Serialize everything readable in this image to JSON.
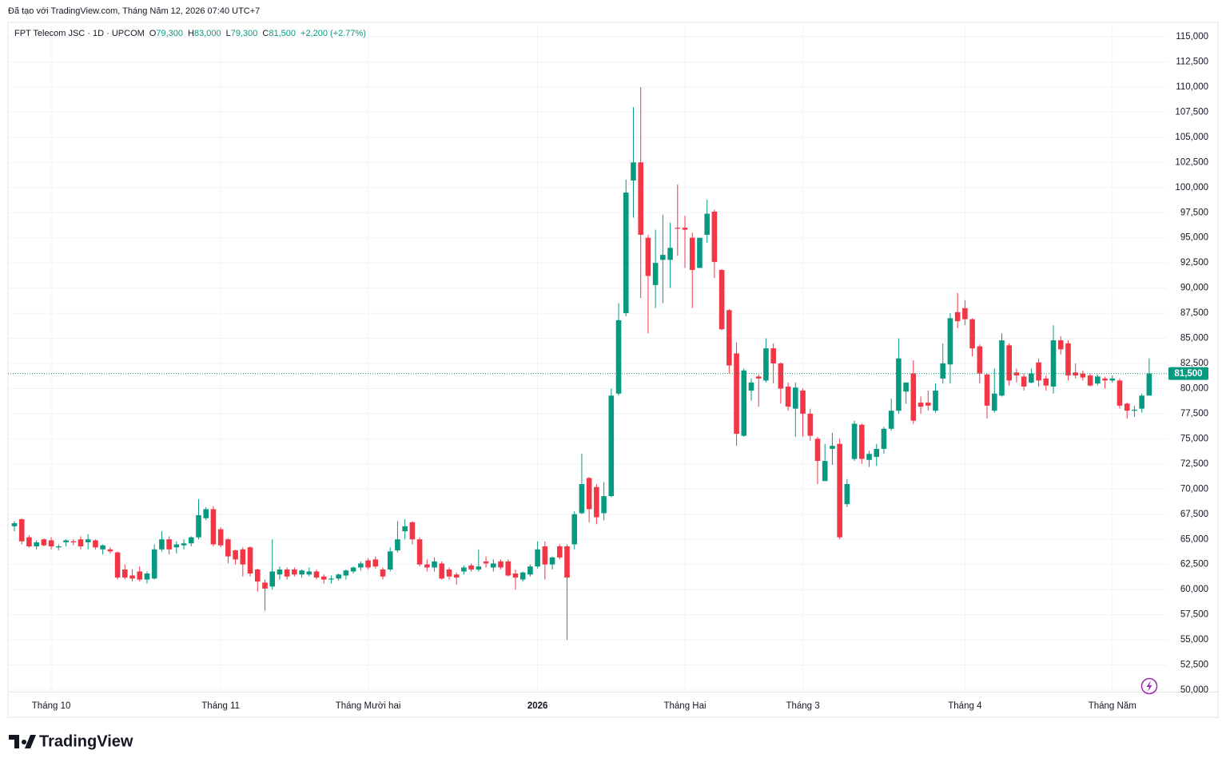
{
  "credit": "Đã tạo với TradingView.com, Tháng Năm 12, 2026 07:40 UTC+7",
  "logo": "TradingView",
  "chart_data": {
    "type": "candlestick",
    "title": "FPT Telecom JSC · 1D · UPCOM",
    "ohlc_legend": [
      {
        "key": "O",
        "value": "79,300"
      },
      {
        "key": "H",
        "value": "83,000"
      },
      {
        "key": "L",
        "value": "79,300"
      },
      {
        "key": "C",
        "value": "81,500"
      }
    ],
    "change": "+2,200 (+2.77%)",
    "up_color": "#089981",
    "down_color": "#f23645",
    "grid": true,
    "last_price": {
      "value": 81500,
      "label": "81,500"
    },
    "ylim": [
      49800,
      116400
    ],
    "yticks": [
      {
        "value": 50000,
        "label": "50,000"
      },
      {
        "value": 52500,
        "label": "52,500"
      },
      {
        "value": 55000,
        "label": "55,000"
      },
      {
        "value": 57500,
        "label": "57,500"
      },
      {
        "value": 60000,
        "label": "60,000"
      },
      {
        "value": 62500,
        "label": "62,500"
      },
      {
        "value": 65000,
        "label": "65,000"
      },
      {
        "value": 67500,
        "label": "67,500"
      },
      {
        "value": 70000,
        "label": "70,000"
      },
      {
        "value": 72500,
        "label": "72,500"
      },
      {
        "value": 75000,
        "label": "75,000"
      },
      {
        "value": 77500,
        "label": "77,500"
      },
      {
        "value": 80000,
        "label": "80,000"
      },
      {
        "value": 82500,
        "label": "82,500"
      },
      {
        "value": 85000,
        "label": "85,000"
      },
      {
        "value": 87500,
        "label": "87,500"
      },
      {
        "value": 90000,
        "label": "90,000"
      },
      {
        "value": 92500,
        "label": "92,500"
      },
      {
        "value": 95000,
        "label": "95,000"
      },
      {
        "value": 97500,
        "label": "97,500"
      },
      {
        "value": 100000,
        "label": "100,000"
      },
      {
        "value": 102500,
        "label": "102,500"
      },
      {
        "value": 105000,
        "label": "105,000"
      },
      {
        "value": 107500,
        "label": "107,500"
      },
      {
        "value": 110000,
        "label": "110,000"
      },
      {
        "value": 112500,
        "label": "112,500"
      },
      {
        "value": 115000,
        "label": "115,000"
      }
    ],
    "categories": [
      null,
      null,
      null,
      null,
      null,
      "Tháng 10",
      null,
      null,
      null,
      null,
      null,
      null,
      null,
      null,
      null,
      null,
      null,
      null,
      null,
      null,
      null,
      null,
      null,
      null,
      null,
      null,
      null,
      null,
      "Tháng 11",
      null,
      null,
      null,
      null,
      null,
      null,
      null,
      null,
      null,
      null,
      null,
      null,
      null,
      null,
      null,
      null,
      null,
      null,
      null,
      "Tháng Mười hai",
      null,
      null,
      null,
      null,
      null,
      null,
      null,
      null,
      null,
      null,
      null,
      null,
      null,
      null,
      null,
      null,
      null,
      null,
      null,
      null,
      null,
      null,
      "2026",
      null,
      null,
      null,
      null,
      null,
      null,
      null,
      null,
      null,
      null,
      null,
      null,
      null,
      null,
      null,
      null,
      null,
      null,
      null,
      "Tháng Hai",
      null,
      null,
      null,
      null,
      null,
      null,
      null,
      null,
      null,
      null,
      null,
      null,
      null,
      null,
      null,
      "Tháng 3",
      null,
      null,
      null,
      null,
      null,
      null,
      null,
      null,
      null,
      null,
      null,
      null,
      null,
      null,
      null,
      null,
      null,
      null,
      null,
      null,
      null,
      "Tháng 4",
      null,
      null,
      null,
      null,
      null,
      null,
      null,
      null,
      null,
      null,
      null,
      null,
      null,
      null,
      null,
      null,
      null,
      null,
      null,
      "Tháng Năm",
      null,
      null,
      null,
      null,
      null
    ],
    "candles": [
      [
        66300,
        66800,
        65800,
        66600
      ],
      [
        67000,
        67100,
        64500,
        64800
      ],
      [
        65200,
        65400,
        64200,
        64300
      ],
      [
        64300,
        64900,
        64000,
        64700
      ],
      [
        65000,
        65100,
        64300,
        64400
      ],
      [
        64900,
        65200,
        64000,
        64300
      ],
      [
        64200,
        64500,
        63900,
        64300
      ],
      [
        64700,
        65000,
        64300,
        64900
      ],
      [
        64800,
        65000,
        64400,
        64700
      ],
      [
        65000,
        65300,
        64000,
        64300
      ],
      [
        64700,
        65500,
        64000,
        65000
      ],
      [
        64900,
        65000,
        64000,
        64200
      ],
      [
        64000,
        64500,
        63500,
        64400
      ],
      [
        64000,
        64200,
        63600,
        63800
      ],
      [
        63700,
        63800,
        61000,
        61200
      ],
      [
        62000,
        62500,
        61000,
        61200
      ],
      [
        61400,
        62000,
        60800,
        61100
      ],
      [
        61800,
        62300,
        60800,
        61000
      ],
      [
        61000,
        61800,
        60600,
        61600
      ],
      [
        61100,
        64500,
        61000,
        64000
      ],
      [
        64000,
        65800,
        63800,
        65000
      ],
      [
        65000,
        65300,
        63500,
        64000
      ],
      [
        64200,
        64800,
        63600,
        64500
      ],
      [
        64400,
        65000,
        64000,
        64600
      ],
      [
        64600,
        65300,
        64300,
        65200
      ],
      [
        65200,
        69000,
        65000,
        67400
      ],
      [
        67100,
        68200,
        66900,
        68000
      ],
      [
        68000,
        68300,
        64300,
        64500
      ],
      [
        66000,
        66200,
        64200,
        64400
      ],
      [
        65000,
        65100,
        62600,
        63300
      ],
      [
        63900,
        64000,
        62500,
        63000
      ],
      [
        64000,
        64200,
        61300,
        62500
      ],
      [
        64200,
        64300,
        61300,
        61600
      ],
      [
        62000,
        62100,
        59800,
        60800
      ],
      [
        60700,
        61000,
        57900,
        60100
      ],
      [
        60300,
        65000,
        60000,
        61800
      ],
      [
        61500,
        62300,
        61000,
        62000
      ],
      [
        62000,
        62200,
        61000,
        61300
      ],
      [
        62000,
        62200,
        61300,
        61500
      ],
      [
        61500,
        62000,
        61200,
        61900
      ],
      [
        61500,
        62200,
        61300,
        61800
      ],
      [
        61800,
        62000,
        61000,
        61200
      ],
      [
        61300,
        61500,
        60600,
        61000
      ],
      [
        61000,
        61400,
        60600,
        61100
      ],
      [
        61100,
        61600,
        60900,
        61500
      ],
      [
        61400,
        62000,
        61000,
        61900
      ],
      [
        61800,
        62300,
        61600,
        62200
      ],
      [
        62200,
        62800,
        61900,
        62600
      ],
      [
        62900,
        63100,
        62000,
        62200
      ],
      [
        63000,
        63300,
        62100,
        62300
      ],
      [
        62000,
        62200,
        61000,
        61300
      ],
      [
        62000,
        64200,
        61800,
        63800
      ],
      [
        63900,
        66800,
        63700,
        65000
      ],
      [
        65800,
        67000,
        65000,
        66300
      ],
      [
        66700,
        66800,
        64500,
        65000
      ],
      [
        65000,
        65200,
        62300,
        62500
      ],
      [
        62500,
        63000,
        61800,
        62200
      ],
      [
        62200,
        63200,
        61800,
        62800
      ],
      [
        62600,
        62800,
        61000,
        61100
      ],
      [
        62000,
        62200,
        61000,
        61300
      ],
      [
        61500,
        61700,
        60500,
        61200
      ],
      [
        61800,
        62400,
        61500,
        62200
      ],
      [
        62400,
        62600,
        61800,
        62000
      ],
      [
        62000,
        64000,
        61800,
        62300
      ],
      [
        62800,
        63300,
        62200,
        62600
      ],
      [
        62200,
        63000,
        61800,
        62600
      ],
      [
        62800,
        63000,
        62000,
        62200
      ],
      [
        62800,
        63000,
        61300,
        61400
      ],
      [
        61600,
        62000,
        60000,
        61200
      ],
      [
        61000,
        61800,
        60800,
        61700
      ],
      [
        61500,
        62500,
        61300,
        62300
      ],
      [
        62300,
        64800,
        62100,
        64000
      ],
      [
        64300,
        64800,
        61000,
        62500
      ],
      [
        62500,
        63300,
        62000,
        63200
      ],
      [
        64300,
        64500,
        63000,
        63200
      ],
      [
        64300,
        64500,
        55000,
        61200
      ],
      [
        64500,
        67800,
        64000,
        67500
      ],
      [
        67600,
        73500,
        67500,
        70500
      ],
      [
        71100,
        71200,
        66700,
        68000
      ],
      [
        70200,
        70500,
        66500,
        67200
      ],
      [
        67600,
        70700,
        66900,
        69300
      ],
      [
        69300,
        80000,
        69200,
        79300
      ],
      [
        79500,
        88500,
        79300,
        86800
      ],
      [
        87500,
        100800,
        87200,
        99500
      ],
      [
        100700,
        108000,
        97000,
        102500
      ],
      [
        102500,
        110000,
        89000,
        95300
      ],
      [
        95000,
        95300,
        85500,
        91200
      ],
      [
        90300,
        95800,
        88000,
        92500
      ],
      [
        92800,
        97300,
        88500,
        93300
      ],
      [
        92800,
        96500,
        90000,
        94000
      ],
      [
        96000,
        100300,
        93200,
        95900
      ],
      [
        96000,
        97200,
        92000,
        95800
      ],
      [
        95000,
        95500,
        88000,
        91800
      ],
      [
        92000,
        95000,
        92000,
        95000
      ],
      [
        95300,
        98800,
        94500,
        97400
      ],
      [
        97600,
        97800,
        91000,
        92600
      ],
      [
        91800,
        91900,
        85800,
        85900
      ],
      [
        87800,
        87900,
        81500,
        82300
      ],
      [
        83500,
        84600,
        74300,
        75500
      ],
      [
        75300,
        82000,
        75200,
        81800
      ],
      [
        79800,
        81000,
        78800,
        80600
      ],
      [
        81200,
        81400,
        78200,
        81000
      ],
      [
        80800,
        85000,
        80600,
        84000
      ],
      [
        84000,
        84500,
        80500,
        82500
      ],
      [
        82500,
        82600,
        78500,
        80000
      ],
      [
        80200,
        80600,
        77800,
        78200
      ],
      [
        78000,
        80600,
        75200,
        80100
      ],
      [
        79800,
        80000,
        75200,
        77500
      ],
      [
        77500,
        78000,
        74800,
        75300
      ],
      [
        75000,
        75200,
        70500,
        72800
      ],
      [
        70800,
        74500,
        70800,
        72800
      ],
      [
        74000,
        75600,
        72400,
        74300
      ],
      [
        74500,
        75000,
        65000,
        65200
      ],
      [
        68500,
        71000,
        68200,
        70500
      ],
      [
        73000,
        76800,
        72800,
        76500
      ],
      [
        76400,
        76500,
        72500,
        73000
      ],
      [
        72900,
        73800,
        72200,
        73500
      ],
      [
        73200,
        74500,
        72300,
        74000
      ],
      [
        74000,
        76200,
        73500,
        76000
      ],
      [
        76000,
        79000,
        75800,
        77800
      ],
      [
        77800,
        85000,
        77500,
        83000
      ],
      [
        79700,
        80500,
        78500,
        80600
      ],
      [
        81500,
        82800,
        76500,
        76800
      ],
      [
        78600,
        79200,
        77500,
        78200
      ],
      [
        78600,
        79800,
        77800,
        78300
      ],
      [
        77800,
        80500,
        77600,
        79800
      ],
      [
        81000,
        84500,
        80500,
        82500
      ],
      [
        82400,
        87500,
        80500,
        87000
      ],
      [
        87600,
        89500,
        86000,
        86700
      ],
      [
        88000,
        88800,
        86300,
        86900
      ],
      [
        86900,
        87000,
        83200,
        84000
      ],
      [
        84200,
        84400,
        80500,
        81500
      ],
      [
        81400,
        81500,
        77000,
        78300
      ],
      [
        77800,
        82000,
        77600,
        79500
      ],
      [
        79300,
        85500,
        79200,
        84800
      ],
      [
        84300,
        84500,
        80300,
        80800
      ],
      [
        81600,
        82000,
        80600,
        81300
      ],
      [
        81200,
        81500,
        79800,
        80200
      ],
      [
        80600,
        82000,
        80500,
        81500
      ],
      [
        82600,
        83000,
        80200,
        80800
      ],
      [
        81000,
        81300,
        79800,
        80300
      ],
      [
        80200,
        86300,
        79500,
        84800
      ],
      [
        84800,
        85200,
        83400,
        83900
      ],
      [
        84500,
        84800,
        80800,
        81300
      ],
      [
        81600,
        82500,
        81000,
        81300
      ],
      [
        81500,
        81800,
        80800,
        81100
      ],
      [
        81300,
        81500,
        80200,
        80300
      ],
      [
        80500,
        81400,
        80300,
        81200
      ],
      [
        81000,
        81200,
        80000,
        80800
      ],
      [
        80800,
        81300,
        80600,
        81000
      ],
      [
        80800,
        81000,
        78000,
        78300
      ],
      [
        78500,
        78600,
        77000,
        77800
      ],
      [
        77800,
        78300,
        77200,
        77900
      ],
      [
        78000,
        79500,
        77600,
        79300
      ],
      [
        79300,
        83000,
        79300,
        81500
      ]
    ]
  }
}
